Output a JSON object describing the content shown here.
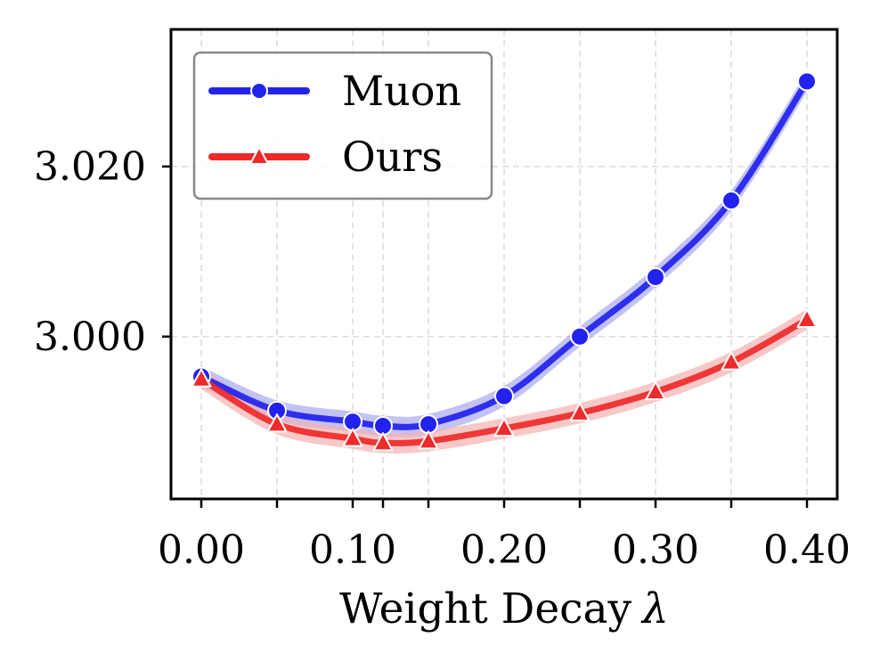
{
  "chart_data": {
    "type": "line",
    "title": "",
    "xlabel": "Weight Decay",
    "xlabel_symbol": "λ",
    "ylabel": "",
    "x": [
      0.0,
      0.05,
      0.1,
      0.12,
      0.15,
      0.2,
      0.25,
      0.3,
      0.35,
      0.4
    ],
    "xlim": [
      -0.02,
      0.42
    ],
    "ylim": [
      2.98091,
      3.03612
    ],
    "x_ticks": [
      0.0,
      0.1,
      0.2,
      0.3,
      0.4
    ],
    "x_tick_labels": [
      "0.00",
      "0.10",
      "0.20",
      "0.30",
      "0.40"
    ],
    "y_ticks": [
      3.0,
      3.02
    ],
    "y_tick_labels": [
      "3.000",
      "3.020"
    ],
    "grid": true,
    "legend_position": "top-left",
    "series": [
      {
        "name": "Muon",
        "color": "#2222ee",
        "band_color": "#a8a8f0",
        "marker": "circle",
        "values": [
          2.9953,
          2.9913,
          2.99,
          2.9895,
          2.9897,
          2.993,
          3.0,
          3.007,
          3.016,
          3.03
        ],
        "band": 0.0012
      },
      {
        "name": "Ours",
        "color": "#ee2a2a",
        "band_color": "#f4b0b0",
        "marker": "triangle",
        "values": [
          2.995,
          2.9897,
          2.988,
          2.9875,
          2.9877,
          2.9892,
          2.991,
          2.9935,
          2.997,
          3.002
        ],
        "band": 0.0012
      }
    ]
  }
}
